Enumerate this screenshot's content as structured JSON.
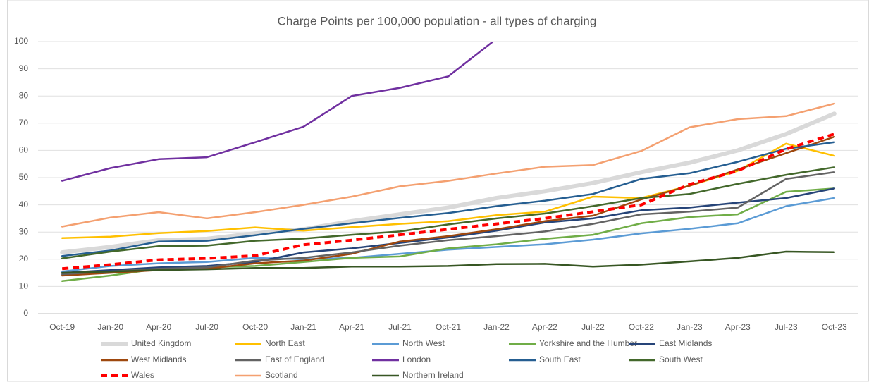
{
  "chart_data": {
    "type": "line",
    "title": "Charge Points per 100,000 population - all types of charging",
    "categories": [
      "Oct-19",
      "Jan-20",
      "Apr-20",
      "Jul-20",
      "Oct-20",
      "Jan-21",
      "Apr-21",
      "Jul-21",
      "Oct-21",
      "Jan-22",
      "Apr-22",
      "Jul-22",
      "Oct-22",
      "Jan-23",
      "Apr-23",
      "Jul-23",
      "Oct-23"
    ],
    "ylim": [
      0,
      100
    ],
    "yticks": [
      0,
      10,
      20,
      30,
      40,
      50,
      60,
      70,
      80,
      90,
      100
    ],
    "grid": true,
    "legend": "bottom",
    "series": [
      {
        "name": "United Kingdom",
        "color": "#d9d9d9",
        "width": 6,
        "values": [
          22.5,
          24.5,
          27,
          27.5,
          29.5,
          31,
          34,
          36.5,
          39,
          42.5,
          45,
          48,
          52,
          55.5,
          60,
          66,
          73.5
        ]
      },
      {
        "name": "North East",
        "color": "#ffc000",
        "values": [
          27.8,
          28.3,
          29.6,
          30.4,
          31.7,
          30.5,
          31.8,
          33,
          34,
          36.2,
          37.5,
          43,
          42.5,
          47,
          52.5,
          62.5,
          58
        ]
      },
      {
        "name": "North West",
        "color": "#5b9bd5",
        "values": [
          15.5,
          17.5,
          18.5,
          19,
          20.5,
          20,
          20.5,
          22,
          23.5,
          24.5,
          25.5,
          27.2,
          29.5,
          31.2,
          33.2,
          39.5,
          42.5
        ]
      },
      {
        "name": "Yorkshire and the Humber",
        "color": "#70ad47",
        "values": [
          12,
          14,
          16.5,
          17,
          17.5,
          19,
          20.5,
          21,
          24,
          25.5,
          27.5,
          29,
          33.2,
          35.5,
          36.5,
          44.8,
          46
        ]
      },
      {
        "name": "East Midlands",
        "color": "#264478",
        "values": [
          15,
          16,
          17,
          17.5,
          19,
          22.5,
          24,
          26,
          28,
          30.5,
          33.5,
          35,
          38,
          39,
          40.8,
          42.5,
          46
        ]
      },
      {
        "name": "West Midlands",
        "color": "#9e480e",
        "values": [
          14,
          15,
          16,
          16.5,
          18.5,
          19.5,
          22,
          26.5,
          28.5,
          31,
          34,
          36,
          42,
          47,
          53,
          59,
          65
        ]
      },
      {
        "name": "East of England",
        "color": "#636363",
        "values": [
          14.5,
          15.5,
          16.5,
          17,
          19.5,
          20.5,
          22.5,
          25,
          27,
          28.5,
          30.2,
          33,
          36.5,
          37.5,
          39,
          49.5,
          52
        ]
      },
      {
        "name": "London",
        "color": "#7030a0",
        "values": [
          48.8,
          53.5,
          56.8,
          57.5,
          63,
          68.7,
          80,
          83,
          87.2,
          101,
          null,
          null,
          null,
          null,
          null,
          null,
          null
        ]
      },
      {
        "name": "South East",
        "color": "#255e91",
        "values": [
          21.2,
          23.2,
          26.5,
          26.8,
          28.8,
          31.2,
          33.2,
          35.2,
          37,
          39.5,
          41.5,
          44,
          49.5,
          51.6,
          55.8,
          60.6,
          63
        ]
      },
      {
        "name": "South West",
        "color": "#43682b",
        "values": [
          20.3,
          22.8,
          24.8,
          25,
          26.8,
          27.6,
          29,
          30.2,
          32.8,
          35,
          36.8,
          39.5,
          42.5,
          44,
          47.7,
          51,
          53.8
        ]
      },
      {
        "name": "Wales",
        "color": "#ff0000",
        "width": 4,
        "style": "dashed",
        "values": [
          16.5,
          18,
          19.8,
          20.3,
          21.3,
          25.3,
          27,
          29,
          31,
          33,
          35,
          37.5,
          40,
          47.5,
          52.5,
          60.5,
          66
        ]
      },
      {
        "name": "Scotland",
        "color": "#f4a070",
        "values": [
          32,
          35.3,
          37.3,
          35,
          37.3,
          40,
          43,
          46.8,
          48.8,
          51.5,
          54,
          54.6,
          59.8,
          68.5,
          71.5,
          72.6,
          77.2
        ]
      },
      {
        "name": "Northern Ireland",
        "color": "#375623",
        "values": [
          15,
          15.5,
          16,
          16.3,
          16.8,
          16.8,
          17.3,
          17.3,
          17.5,
          18.2,
          18.3,
          17.3,
          18,
          19.2,
          20.5,
          22.8,
          22.6
        ]
      }
    ]
  }
}
